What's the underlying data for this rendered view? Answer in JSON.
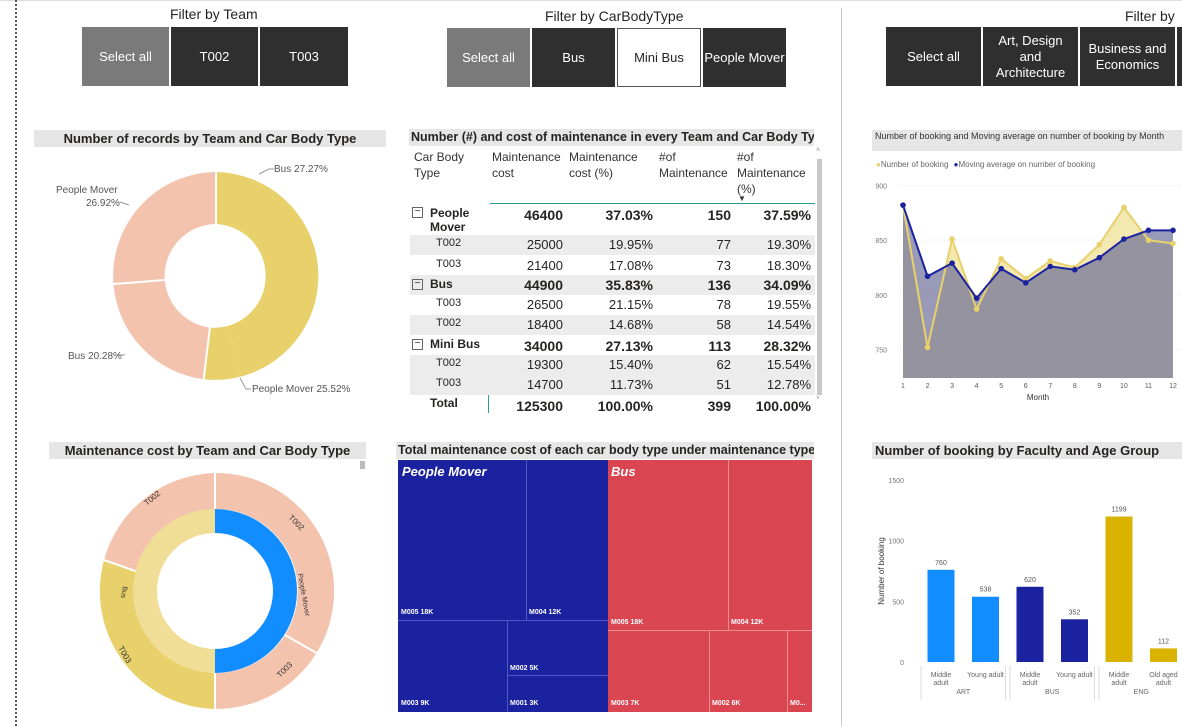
{
  "filters": {
    "team": {
      "title": "Filter by Team",
      "options": [
        "Select all",
        "T002",
        "T003"
      ]
    },
    "carbody": {
      "title": "Filter by CarBodyType",
      "options": [
        "Select all",
        "Bus",
        "Mini Bus",
        "People Mover"
      ]
    },
    "faculty": {
      "title": "Filter by",
      "options": [
        "Select all",
        "Art, Design and Architecture",
        "Business and Economics"
      ]
    }
  },
  "donut1": {
    "title": "Number of records by Team and Car Body Type",
    "labels": [
      "Bus 27.27%",
      "People Mover 25.52%",
      "Bus 20.28%",
      "People Mover",
      "26.92%"
    ],
    "colors": {
      "gold": "#e8d06b",
      "salmon": "#f4c3ad"
    }
  },
  "matrix": {
    "title": "Number (#) and cost of maintenance in every Team and Car Body Type",
    "headers": [
      [
        "Car Body",
        "Type"
      ],
      [
        "Maintenance",
        "cost"
      ],
      [
        "Maintenance",
        "cost (%)"
      ],
      [
        "#of",
        "Maintenance"
      ],
      [
        "#of",
        "Maintenance",
        "(%)"
      ]
    ],
    "groups": [
      {
        "name": [
          "People",
          "Mover"
        ],
        "values": [
          "46400",
          "37.03%",
          "150",
          "37.59%"
        ],
        "rows": [
          {
            "team": "T002",
            "values": [
              "25000",
              "19.95%",
              "77",
              "19.30%"
            ]
          },
          {
            "team": "T003",
            "values": [
              "21400",
              "17.08%",
              "73",
              "18.30%"
            ]
          }
        ]
      },
      {
        "name": [
          "Bus"
        ],
        "values": [
          "44900",
          "35.83%",
          "136",
          "34.09%"
        ],
        "rows": [
          {
            "team": "T003",
            "values": [
              "26500",
              "21.15%",
              "78",
              "19.55%"
            ]
          },
          {
            "team": "T002",
            "values": [
              "18400",
              "14.68%",
              "58",
              "14.54%"
            ]
          }
        ]
      },
      {
        "name": [
          "Mini Bus"
        ],
        "values": [
          "34000",
          "27.13%",
          "113",
          "28.32%"
        ],
        "rows": [
          {
            "team": "T002",
            "values": [
              "19300",
              "15.40%",
              "62",
              "15.54%"
            ]
          },
          {
            "team": "T003",
            "values": [
              "14700",
              "11.73%",
              "51",
              "12.78%"
            ]
          }
        ]
      }
    ],
    "total": {
      "label": "Total",
      "values": [
        "125300",
        "100.00%",
        "399",
        "100.00%"
      ]
    }
  },
  "line_chart_title": "Number of booking and Moving average on number of booking by Month",
  "donut2": {
    "title": "Maintenance cost by Team and Car Body Type",
    "labels": [
      "T002",
      "T002",
      "T003",
      "T003",
      "People Mover",
      "Bus"
    ]
  },
  "treemap": {
    "title": "Total maintenance cost of each car body type under maintenance type",
    "groups": [
      {
        "name": "People Mover",
        "color": "#1a22a0",
        "cells": [
          "M005 18K",
          "M004 12K",
          "M002 5K",
          "M003 9K",
          "M001 3K"
        ]
      },
      {
        "name": "Bus",
        "color": "#d94550",
        "cells": [
          "M005 18K",
          "M004 12K",
          "M003 7K",
          "M002 6K",
          "M0..."
        ]
      }
    ]
  },
  "bar_chart_title": "Number of booking by Faculty and Age Group",
  "chart_data": [
    {
      "type": "line",
      "title": "Number of booking and Moving average on number of booking by Month",
      "xlabel": "Month",
      "ylabel": "",
      "x": [
        1,
        2,
        3,
        4,
        5,
        6,
        7,
        8,
        9,
        10,
        11,
        12
      ],
      "xlim": [
        1,
        12
      ],
      "ylim": [
        735,
        905
      ],
      "yticks": [
        750,
        800,
        850,
        900
      ],
      "series": [
        {
          "name": "Number of booking",
          "color": "#e8d06b",
          "values": [
            882,
            752,
            851,
            787,
            833,
            815,
            831,
            825,
            846,
            880,
            850,
            847
          ]
        },
        {
          "name": "Moving average on number of booking",
          "color": "#1a22a0",
          "values": [
            882,
            817,
            829,
            797,
            824,
            811,
            826,
            823,
            834,
            851,
            859,
            859
          ]
        }
      ],
      "legend": "top-left"
    },
    {
      "type": "bar",
      "title": "Number of booking by Faculty and Age Group",
      "ylabel": "Number of booking",
      "ylim": [
        0,
        1500
      ],
      "yticks": [
        0,
        500,
        1000,
        1500
      ],
      "categories": [
        "Middle adult",
        "Young adult",
        "Middle adult",
        "Young adult",
        "Middle adult",
        "Old aged adult"
      ],
      "groups": [
        {
          "name": "ART",
          "span": [
            0,
            1
          ]
        },
        {
          "name": "BUS",
          "span": [
            2,
            3
          ]
        },
        {
          "name": "ENG",
          "span": [
            4,
            5
          ]
        }
      ],
      "values": [
        760,
        538,
        620,
        352,
        1199,
        112
      ],
      "colors": [
        "#118dff",
        "#118dff",
        "#1a22a0",
        "#1a22a0",
        "#d9b300",
        "#d9b300"
      ]
    }
  ]
}
